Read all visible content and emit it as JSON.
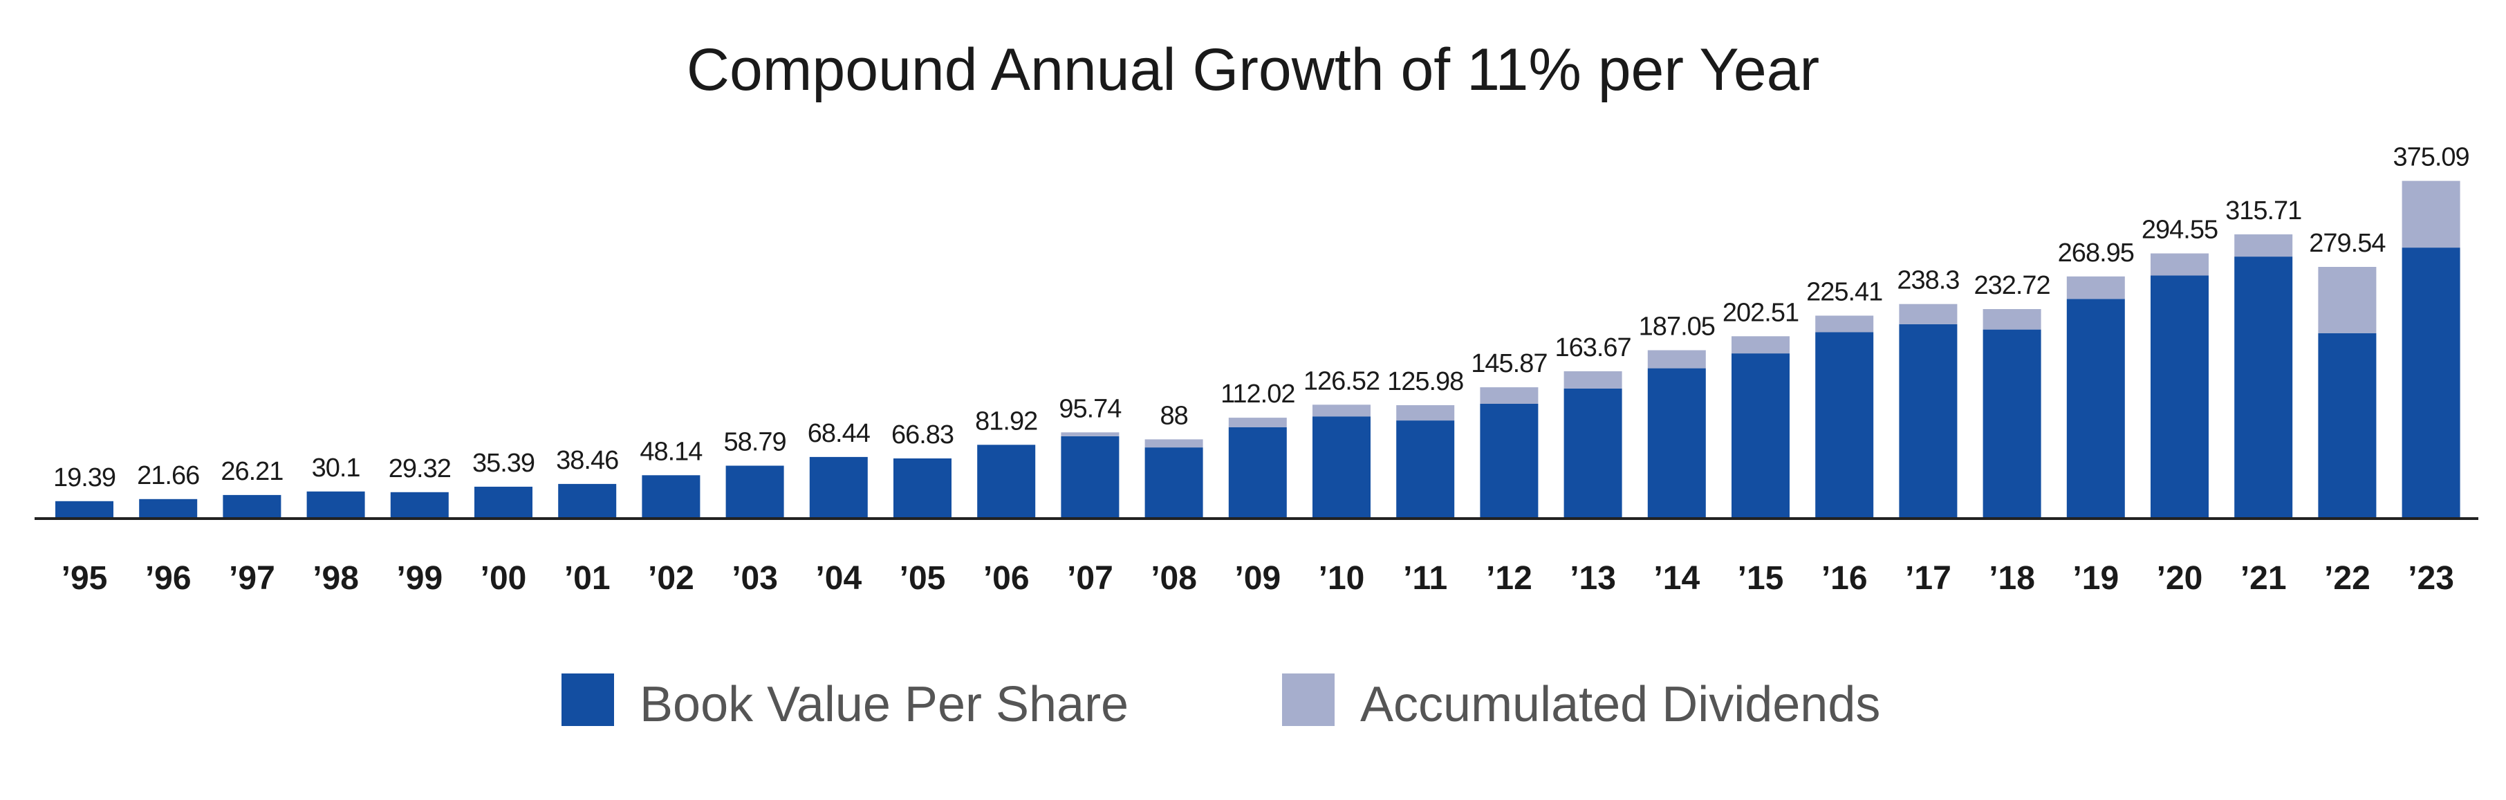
{
  "chart_data": {
    "type": "bar",
    "stacked": true,
    "title": "Compound Annual Growth of 11% per Year",
    "xlabel": "",
    "ylabel": "",
    "ylim": [
      0,
      400
    ],
    "grid": false,
    "legend_position": "bottom-center",
    "categories": [
      "’95",
      "’96",
      "’97",
      "’98",
      "’99",
      "’00",
      "’01",
      "’02",
      "’03",
      "’04",
      "’05",
      "’06",
      "’07",
      "’08",
      "’09",
      "’10",
      "’11",
      "’12",
      "’13",
      "’14",
      "’15",
      "’16",
      "’17",
      "’18",
      "’19",
      "’20",
      "’21",
      "’22",
      "’23"
    ],
    "series": [
      {
        "name": "Book Value Per Share",
        "color": "#134ea1",
        "values": [
          19.39,
          21.66,
          26.21,
          30.1,
          29.32,
          35.39,
          38.46,
          48.14,
          58.79,
          68.44,
          66.83,
          81.92,
          91.5,
          79.0,
          101.5,
          113.5,
          109.0,
          127.5,
          144.5,
          167.0,
          183.5,
          207.0,
          216.0,
          210.0,
          244.0,
          270.0,
          291.0,
          206.0,
          301.0
        ]
      },
      {
        "name": "Accumulated Dividends",
        "color": "#a6aecd",
        "values": [
          0,
          0,
          0,
          0,
          0,
          0,
          0,
          0,
          0,
          0,
          0,
          0,
          4.24,
          9.0,
          10.52,
          13.02,
          16.98,
          18.37,
          19.17,
          20.05,
          19.01,
          18.41,
          22.3,
          22.72,
          24.95,
          24.55,
          24.71,
          73.54,
          74.09
        ]
      }
    ],
    "totals": [
      "19.39",
      "21.66",
      "26.21",
      "30.1",
      "29.32",
      "35.39",
      "38.46",
      "48.14",
      "58.79",
      "68.44",
      "66.83",
      "81.92",
      "95.74",
      "88",
      "112.02",
      "126.52",
      "125.98",
      "145.87",
      "163.67",
      "187.05",
      "202.51",
      "225.41",
      "238.3",
      "232.72",
      "268.95",
      "294.55",
      "315.71",
      "279.54",
      "375.09"
    ]
  },
  "colors": {
    "book_value": "#134ea1",
    "dividends": "#a6aecd",
    "axis": "#222222"
  },
  "legend": {
    "book_value_label": "Book Value Per Share",
    "dividends_label": "Accumulated Dividends"
  }
}
